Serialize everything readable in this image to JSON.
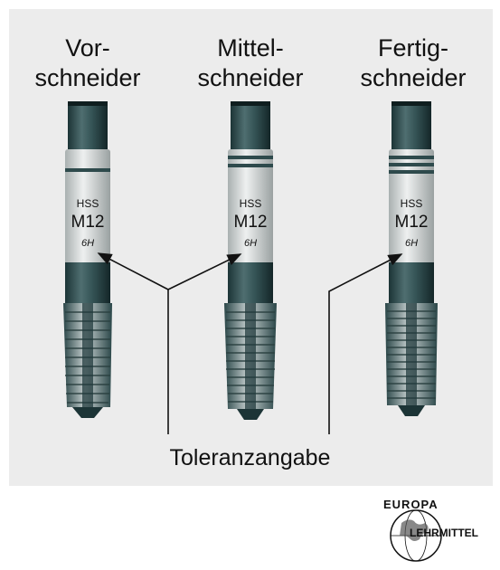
{
  "tools": [
    {
      "title_line1": "Vor-",
      "title_line2": "schneider",
      "material": "HSS",
      "size": "M12",
      "tolerance": "6H",
      "rings": 1
    },
    {
      "title_line1": "Mittel-",
      "title_line2": "schneider",
      "material": "HSS",
      "size": "M12",
      "tolerance": "6H",
      "rings": 2
    },
    {
      "title_line1": "Fertig-",
      "title_line2": "schneider",
      "material": "HSS",
      "size": "M12",
      "tolerance": "6H",
      "rings": 3
    }
  ],
  "callout_label": "Toleranzangabe",
  "logo": {
    "top_text": "EUROPA",
    "bottom_text": "LEHRMITTEL"
  },
  "colors": {
    "panel": "#ececec",
    "steel_dark": "#1f3e40",
    "steel_mid": "#4f6e70",
    "label_band": "#d9dcdc"
  }
}
